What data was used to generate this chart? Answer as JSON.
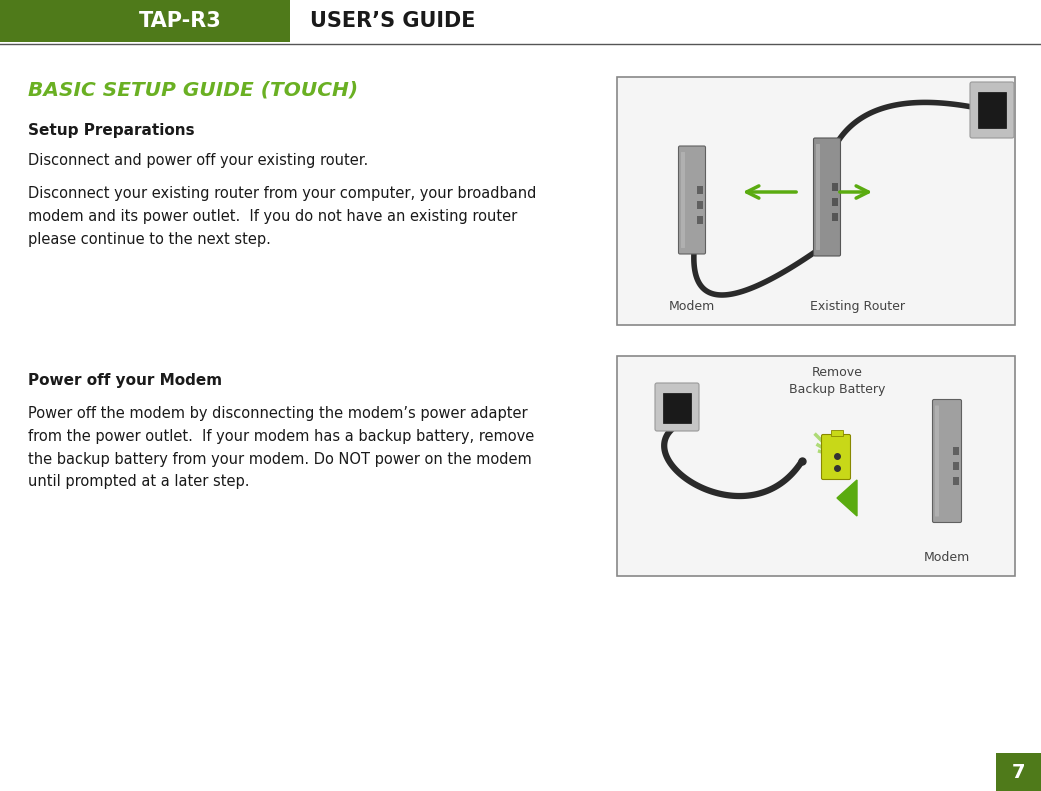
{
  "bg_color": "#ffffff",
  "header_bg_color": "#4f7a1a",
  "header_tap_text": "TAP-R3",
  "header_guide_text": "USER’S GUIDE",
  "header_tap_color": "#ffffff",
  "header_guide_color": "#1a1a1a",
  "header_line_color": "#555555",
  "title_text": "BASIC SETUP GUIDE (TOUCH)",
  "title_color": "#6ab023",
  "section1_bold": "Setup Preparations",
  "section1_line1": "Disconnect and power off your existing router.",
  "section1_line2": "Disconnect your existing router from your computer, your broadband\nmodem and its power outlet.  If you do not have an existing router\nplease continue to the next step.",
  "section2_bold": "Power off your Modem",
  "section2_line1": "Power off the modem by disconnecting the modem’s power adapter\nfrom the power outlet.  If your modem has a backup battery, remove\nthe backup battery from your modem. Do NOT power on the modem\nuntil prompted at a later step.",
  "img1_label1": "Modem",
  "img1_label2": "Existing Router",
  "img2_label1": "Remove\nBackup Battery",
  "img2_label2": "Modem",
  "page_number": "7",
  "page_num_bg": "#4f7a1a",
  "page_num_color": "#ffffff",
  "text_color": "#1a1a1a",
  "bold_color": "#1a1a1a",
  "img_border_color": "#888888",
  "device_color": "#909090",
  "device_dark": "#555555",
  "cable_color": "#2a2a2a",
  "arrow_color": "#5aab10",
  "outlet_color": "#b0b0b0",
  "outlet_dark": "#333333",
  "battery_color": "#c8d818",
  "battery_dark": "#888800"
}
